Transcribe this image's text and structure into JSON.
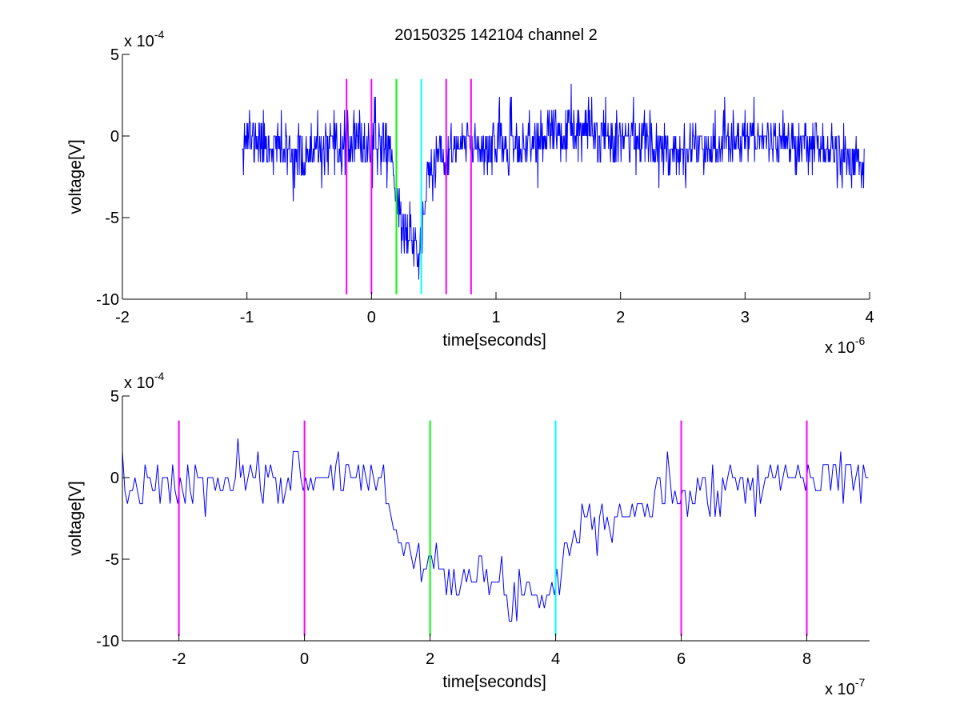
{
  "figure": {
    "title": "20150325 142104 channel 2"
  },
  "chart_data": [
    {
      "type": "line",
      "title": "20150325 142104 channel 2",
      "xlabel": "time[seconds]",
      "ylabel": "voltage[V]",
      "x_exponent_label": "x 10",
      "x_exponent": "-6",
      "y_exponent_label": "x 10",
      "y_exponent": "-4",
      "xlim": [
        -2,
        4
      ],
      "ylim": [
        -10,
        5
      ],
      "xticks": [
        -2,
        -1,
        0,
        1,
        2,
        3,
        4
      ],
      "xtick_labels": [
        "-2",
        "-1",
        "0",
        "1",
        "2",
        "3",
        "4"
      ],
      "yticks": [
        5,
        0,
        -5,
        -10
      ],
      "ytick_labels": [
        "5",
        "0",
        "-5",
        "-10"
      ],
      "grid": false,
      "series": [
        {
          "color": "#0000ff",
          "x_range": [
            -1.04,
            3.96
          ],
          "x_step": 0.004,
          "seed": 11,
          "y_noise_std": 0.9,
          "y_quant": 0.8,
          "y_clip": [
            -9.6,
            4.0
          ],
          "envelope": [
            [
              -1.04,
              0.0
            ],
            [
              -0.9,
              -0.3
            ],
            [
              -0.6,
              -1.2
            ],
            [
              -0.45,
              -1.1
            ],
            [
              -0.3,
              -0.9
            ],
            [
              -0.15,
              -0.4
            ],
            [
              0.0,
              -0.5
            ],
            [
              0.12,
              -0.5
            ],
            [
              0.16,
              -1.2
            ],
            [
              0.2,
              -3.6
            ],
            [
              0.22,
              -4.8
            ],
            [
              0.25,
              -5.6
            ],
            [
              0.3,
              -5.9
            ],
            [
              0.36,
              -6.6
            ],
            [
              0.4,
              -7.4
            ],
            [
              0.42,
              -4.8
            ],
            [
              0.45,
              -2.4
            ],
            [
              0.5,
              -1.9
            ],
            [
              0.6,
              -1.4
            ],
            [
              0.75,
              -0.4
            ],
            [
              1.0,
              -0.7
            ],
            [
              1.2,
              -0.6
            ],
            [
              1.5,
              0.2
            ],
            [
              2.0,
              0.1
            ],
            [
              2.5,
              -0.9
            ],
            [
              3.0,
              0.0
            ],
            [
              3.5,
              -0.4
            ],
            [
              3.96,
              -1.6
            ]
          ]
        }
      ],
      "vertical_lines": [
        {
          "x": -0.2,
          "color": "#ff00ff"
        },
        {
          "x": 0.0,
          "color": "#ff00ff"
        },
        {
          "x": 0.2,
          "color": "#00ff00"
        },
        {
          "x": 0.4,
          "color": "#00ffff"
        },
        {
          "x": 0.6,
          "color": "#ff00ff"
        },
        {
          "x": 0.8,
          "color": "#ff00ff"
        }
      ],
      "vline_yrange": [
        -9.7,
        3.5
      ]
    },
    {
      "type": "line",
      "title": "",
      "xlabel": "time[seconds]",
      "ylabel": "voltage[V]",
      "x_exponent_label": "x 10",
      "x_exponent": "-7",
      "y_exponent_label": "x 10",
      "y_exponent": "-4",
      "xlim": [
        -2.9,
        9
      ],
      "ylim": [
        -10,
        5
      ],
      "xticks": [
        -2,
        0,
        2,
        4,
        6,
        8
      ],
      "xtick_labels": [
        "-2",
        "0",
        "2",
        "4",
        "6",
        "8"
      ],
      "yticks": [
        5,
        0,
        -5,
        -10
      ],
      "ytick_labels": [
        "5",
        "0",
        "-5",
        "-10"
      ],
      "grid": false,
      "series": [
        {
          "color": "#0000ff",
          "x_range": [
            -2.9,
            9.0
          ],
          "x_step": 0.04,
          "seed": 7,
          "y_noise_std": 0.8,
          "y_quant": 0.8,
          "y_clip": [
            -8.8,
            2.4
          ],
          "envelope": [
            [
              -2.9,
              -0.6
            ],
            [
              -2.0,
              -0.6
            ],
            [
              -1.0,
              -0.3
            ],
            [
              0.0,
              0.1
            ],
            [
              0.8,
              0.2
            ],
            [
              1.3,
              -0.3
            ],
            [
              1.4,
              -2.5
            ],
            [
              1.6,
              -4.2
            ],
            [
              1.8,
              -5.0
            ],
            [
              2.0,
              -5.4
            ],
            [
              2.4,
              -5.6
            ],
            [
              2.8,
              -6.1
            ],
            [
              3.2,
              -6.9
            ],
            [
              3.6,
              -7.0
            ],
            [
              3.9,
              -6.9
            ],
            [
              4.1,
              -5.4
            ],
            [
              4.4,
              -2.6
            ],
            [
              4.8,
              -2.0
            ],
            [
              5.2,
              -2.1
            ],
            [
              5.6,
              -1.5
            ],
            [
              6.0,
              -0.6
            ],
            [
              6.5,
              -0.6
            ],
            [
              7.0,
              0.0
            ],
            [
              8.0,
              0.0
            ],
            [
              9.0,
              0.2
            ]
          ]
        }
      ],
      "vertical_lines": [
        {
          "x": -2.0,
          "color": "#ff00ff"
        },
        {
          "x": 0.0,
          "color": "#ff00ff"
        },
        {
          "x": 2.0,
          "color": "#00ff00"
        },
        {
          "x": 4.0,
          "color": "#00ffff"
        },
        {
          "x": 6.0,
          "color": "#ff00ff"
        },
        {
          "x": 8.0,
          "color": "#ff00ff"
        }
      ],
      "vline_yrange": [
        -9.7,
        3.5
      ]
    }
  ]
}
